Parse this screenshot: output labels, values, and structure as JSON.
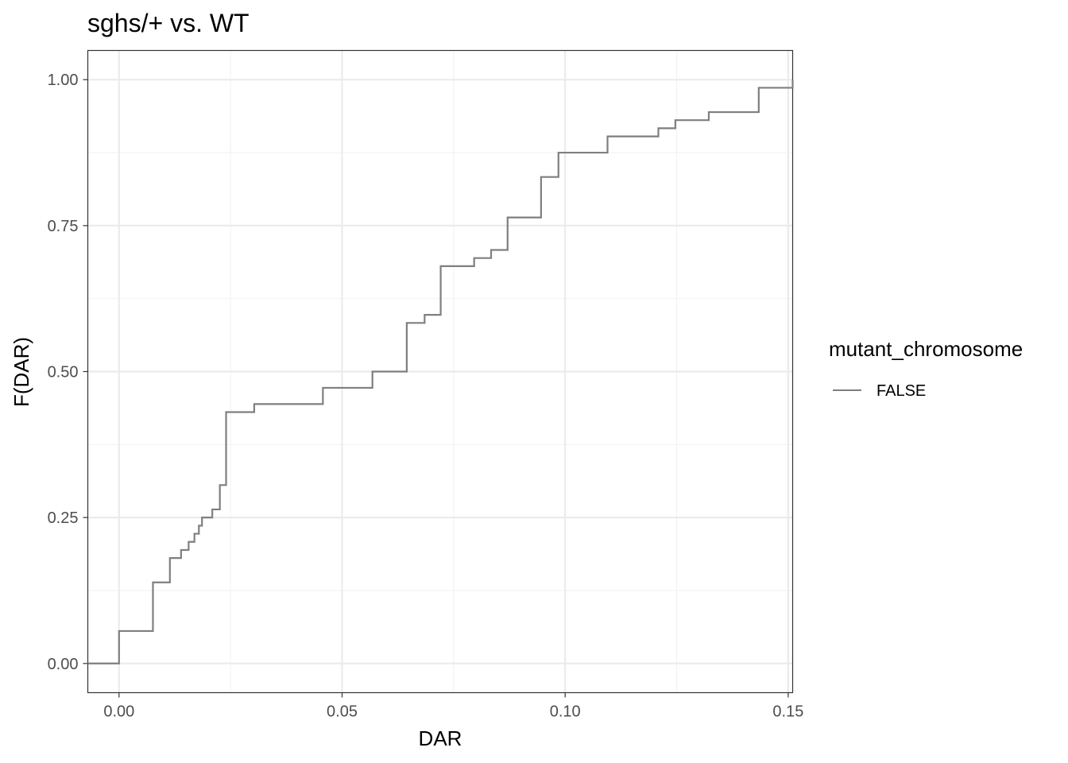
{
  "chart_data": {
    "type": "line",
    "title": "sghs/+ vs. WT",
    "xlabel": "DAR",
    "ylabel": "F(DAR)",
    "xlim": [
      -0.007,
      0.151
    ],
    "ylim": [
      -0.05,
      1.05
    ],
    "x_ticks": [
      0.0,
      0.05,
      0.1,
      0.15
    ],
    "x_tick_labels": [
      "0.00",
      "0.05",
      "0.10",
      "0.15"
    ],
    "y_ticks": [
      0.0,
      0.25,
      0.5,
      0.75,
      1.0
    ],
    "y_tick_labels": [
      "0.00",
      "0.25",
      "0.50",
      "0.75",
      "1.00"
    ],
    "grid": true,
    "legend": {
      "title": "mutant_chromosome",
      "position": "right",
      "entries": [
        {
          "label": "FALSE",
          "color": "#7f7f7f"
        }
      ]
    },
    "series": [
      {
        "name": "FALSE",
        "step": true,
        "color": "#7f7f7f",
        "x": [
          -0.007,
          0.0,
          0.0076,
          0.0114,
          0.0139,
          0.0156,
          0.0169,
          0.0179,
          0.0186,
          0.0209,
          0.0226,
          0.024,
          0.0303,
          0.0457,
          0.0568,
          0.0645,
          0.0685,
          0.0721,
          0.0796,
          0.0834,
          0.0871,
          0.0946,
          0.0985,
          0.1095,
          0.1209,
          0.1247,
          0.1322,
          0.1434,
          0.151
        ],
        "y": [
          0.0,
          0.0556,
          0.1389,
          0.1806,
          0.1944,
          0.2083,
          0.2222,
          0.2361,
          0.25,
          0.2639,
          0.3056,
          0.4306,
          0.4444,
          0.4722,
          0.5,
          0.5833,
          0.5972,
          0.6806,
          0.6944,
          0.7083,
          0.7639,
          0.8333,
          0.875,
          0.9028,
          0.9167,
          0.9306,
          0.9444,
          0.9861,
          1.0
        ]
      }
    ]
  }
}
